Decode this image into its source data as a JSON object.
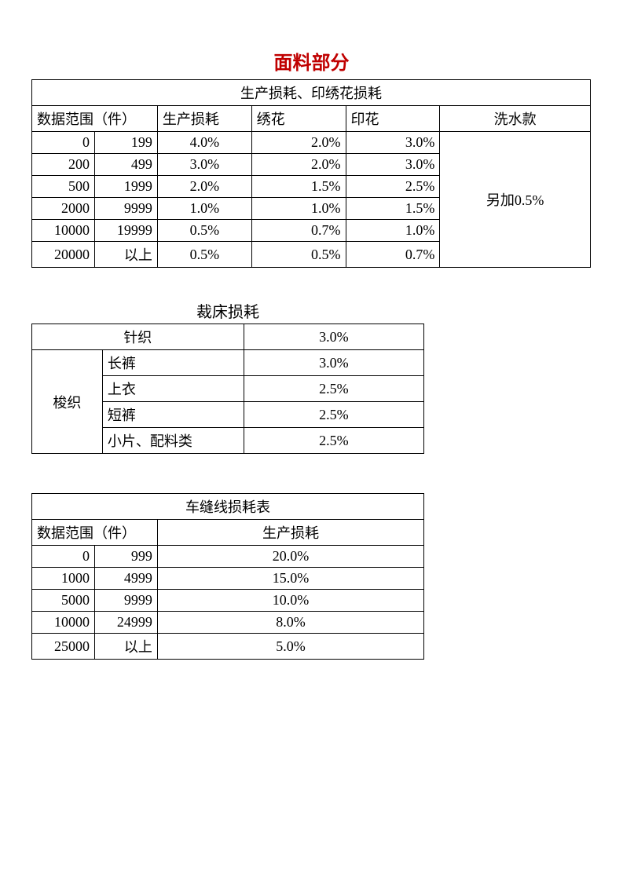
{
  "title": "面料部分",
  "table1": {
    "header_main": "生产损耗、印绣花损耗",
    "header_range": "数据范围（件）",
    "header_prod": "生产损耗",
    "header_emb": "绣花",
    "header_print": "印花",
    "header_wash": "洗水款",
    "note": "另加0.5%",
    "rows": [
      {
        "lo": "0",
        "hi": "199",
        "prod": "4.0%",
        "emb": "2.0%",
        "print": "3.0%"
      },
      {
        "lo": "200",
        "hi": "499",
        "prod": "3.0%",
        "emb": "2.0%",
        "print": "3.0%"
      },
      {
        "lo": "500",
        "hi": "1999",
        "prod": "2.0%",
        "emb": "1.5%",
        "print": "2.5%"
      },
      {
        "lo": "2000",
        "hi": "9999",
        "prod": "1.0%",
        "emb": "1.0%",
        "print": "1.5%"
      },
      {
        "lo": "10000",
        "hi": "19999",
        "prod": "0.5%",
        "emb": "0.7%",
        "print": "1.0%"
      },
      {
        "lo": "20000",
        "hi": "以上",
        "prod": "0.5%",
        "emb": "0.5%",
        "print": "0.7%"
      }
    ]
  },
  "table2": {
    "title": "裁床损耗",
    "knit_label": "针织",
    "knit_val": "3.0%",
    "woven_label": "梭织",
    "rows": [
      {
        "name": "长裤",
        "val": "3.0%"
      },
      {
        "name": "上衣",
        "val": "2.5%"
      },
      {
        "name": "短裤",
        "val": "2.5%"
      },
      {
        "name": "小片、配料类",
        "val": "2.5%"
      }
    ]
  },
  "table3": {
    "header_main": "车缝线损耗表",
    "header_range": "数据范围（件）",
    "header_prod": "生产损耗",
    "rows": [
      {
        "lo": "0",
        "hi": "999",
        "val": "20.0%"
      },
      {
        "lo": "1000",
        "hi": "4999",
        "val": "15.0%"
      },
      {
        "lo": "5000",
        "hi": "9999",
        "val": "10.0%"
      },
      {
        "lo": "10000",
        "hi": "24999",
        "val": "8.0%"
      },
      {
        "lo": "25000",
        "hi": "以上",
        "val": "5.0%"
      }
    ]
  },
  "colors": {
    "title": "#c00000",
    "border": "#000000",
    "text": "#000000",
    "background": "#ffffff"
  },
  "fonts": {
    "body_size_pt": 14,
    "title_size_pt": 18,
    "family": "SimSun"
  }
}
